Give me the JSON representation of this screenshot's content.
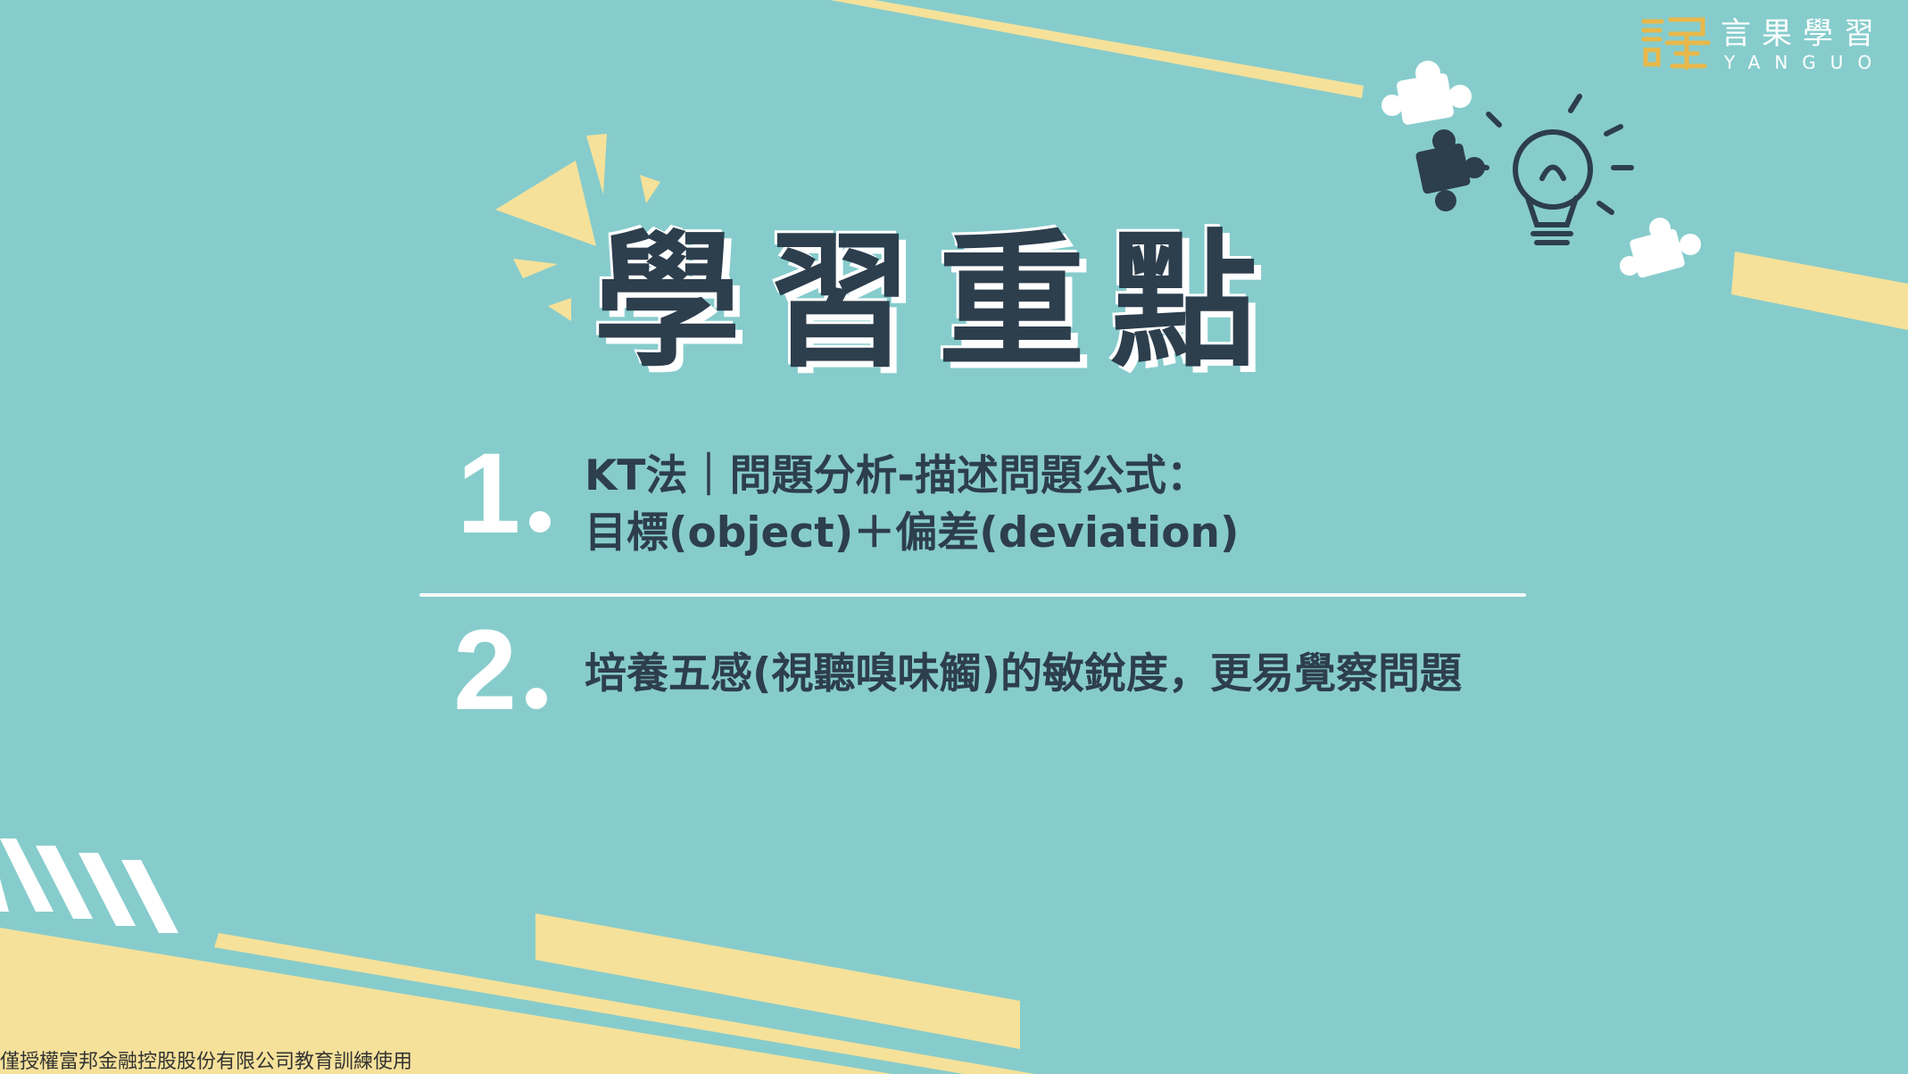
{
  "brand": {
    "name_cn": "言果學習",
    "name_en": "YANGUO"
  },
  "slide": {
    "title": "學習重點",
    "items": [
      {
        "number": "1",
        "line1": "KT法｜問題分析-描述問題公式：",
        "line2": "目標(object)＋偏差(deviation)"
      },
      {
        "number": "2",
        "line1": "培養五感(視聽嗅味觸)的敏銳度，更易覺察問題"
      }
    ]
  },
  "footer": {
    "notice": "僅授權富邦金融控股股份有限公司教育訓練使用"
  },
  "colors": {
    "background": "#87cccc",
    "accent_yellow": "#f5e19a",
    "text_dark": "#2d3e4d",
    "logo_gold": "#e8b84a"
  },
  "icons": [
    "puzzle-piece-icon",
    "light-bulb-icon",
    "logo-mark-icon"
  ]
}
